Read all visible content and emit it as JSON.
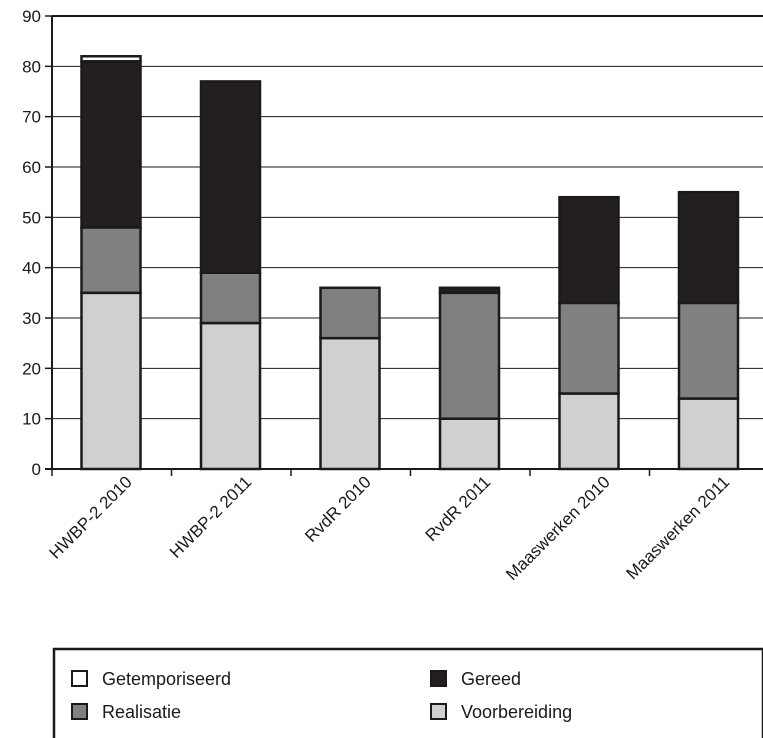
{
  "chart_data": {
    "type": "bar",
    "stacked": true,
    "categories": [
      "HWBP-2 2010",
      "HWBP-2 2011",
      "RvdR 2010",
      "RvdR 2011",
      "Maaswerken 2010",
      "Maaswerken 2011"
    ],
    "series": [
      {
        "name": "Voorbereiding",
        "color": "#d0d0d0",
        "values": [
          35,
          29,
          26,
          10,
          15,
          14
        ]
      },
      {
        "name": "Realisatie",
        "color": "#808080",
        "values": [
          13,
          10,
          10,
          25,
          18,
          19
        ]
      },
      {
        "name": "Gereed",
        "color": "#231f20",
        "values": [
          33,
          38,
          0,
          1,
          21,
          22
        ]
      },
      {
        "name": "Getemporiseerd",
        "color": "#ffffff",
        "values": [
          1,
          0,
          0,
          0,
          0,
          0
        ]
      }
    ],
    "ylim": [
      0,
      90
    ],
    "yticks": [
      0,
      10,
      20,
      30,
      40,
      50,
      60,
      70,
      80,
      90
    ],
    "grid": true,
    "legend_position": "bottom",
    "legend_order": [
      "Getemporiseerd",
      "Gereed",
      "Realisatie",
      "Voorbereiding"
    ]
  }
}
